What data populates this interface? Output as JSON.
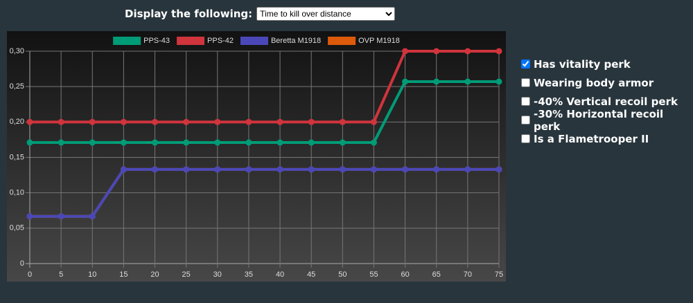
{
  "header": {
    "label": "Display the following:",
    "selected": "Time to kill over distance"
  },
  "chart_data": {
    "type": "line",
    "x": [
      0,
      5,
      10,
      15,
      20,
      25,
      30,
      35,
      40,
      45,
      50,
      55,
      60,
      65,
      70,
      75
    ],
    "xlim": [
      0,
      75
    ],
    "xticks": [
      0,
      5,
      10,
      15,
      20,
      25,
      30,
      35,
      40,
      45,
      50,
      55,
      60,
      65,
      70,
      75
    ],
    "ylim": [
      0,
      0.3
    ],
    "yticks": [
      0,
      {
        "value": 0.05,
        "label": "0,05"
      },
      {
        "value": 0.1,
        "label": "0,10"
      },
      {
        "value": 0.15,
        "label": "0,15"
      },
      {
        "value": 0.2,
        "label": "0,20"
      },
      {
        "value": 0.25,
        "label": "0,25"
      },
      {
        "value": 0.3,
        "label": "0,30"
      }
    ],
    "grid": true,
    "legend": "top",
    "series": [
      {
        "name": "PPS-43",
        "color": "#009b77",
        "values": [
          0.171,
          0.171,
          0.171,
          0.171,
          0.171,
          0.171,
          0.171,
          0.171,
          0.171,
          0.171,
          0.171,
          0.171,
          0.257,
          0.257,
          0.257,
          0.257
        ]
      },
      {
        "name": "PPS-42",
        "color": "#d0343c",
        "values": [
          0.2,
          0.2,
          0.2,
          0.2,
          0.2,
          0.2,
          0.2,
          0.2,
          0.2,
          0.2,
          0.2,
          0.2,
          0.3,
          0.3,
          0.3,
          0.3
        ]
      },
      {
        "name": "Beretta M1918",
        "color": "#4a48b8",
        "values": [
          0.0667,
          0.0667,
          0.0667,
          0.133,
          0.133,
          0.133,
          0.133,
          0.133,
          0.133,
          0.133,
          0.133,
          0.133,
          0.133,
          0.133,
          0.133,
          0.133
        ]
      },
      {
        "name": "OVP M1918",
        "color": "#dd5a0a",
        "values": [
          0.0667,
          0.0667,
          0.0667,
          0.133,
          0.133,
          0.133,
          0.133,
          0.133,
          0.133,
          0.133,
          0.133,
          0.133,
          0.133,
          0.133,
          0.133,
          0.133
        ]
      }
    ]
  },
  "options": [
    {
      "label": "Has vitality perk",
      "checked": true
    },
    {
      "label": "Wearing body armor",
      "checked": false
    },
    {
      "label": "-40% Vertical recoil perk",
      "checked": false
    },
    {
      "label": "-30% Horizontal recoil perk",
      "checked": false
    },
    {
      "label": "Is a Flametrooper II",
      "checked": false
    }
  ]
}
